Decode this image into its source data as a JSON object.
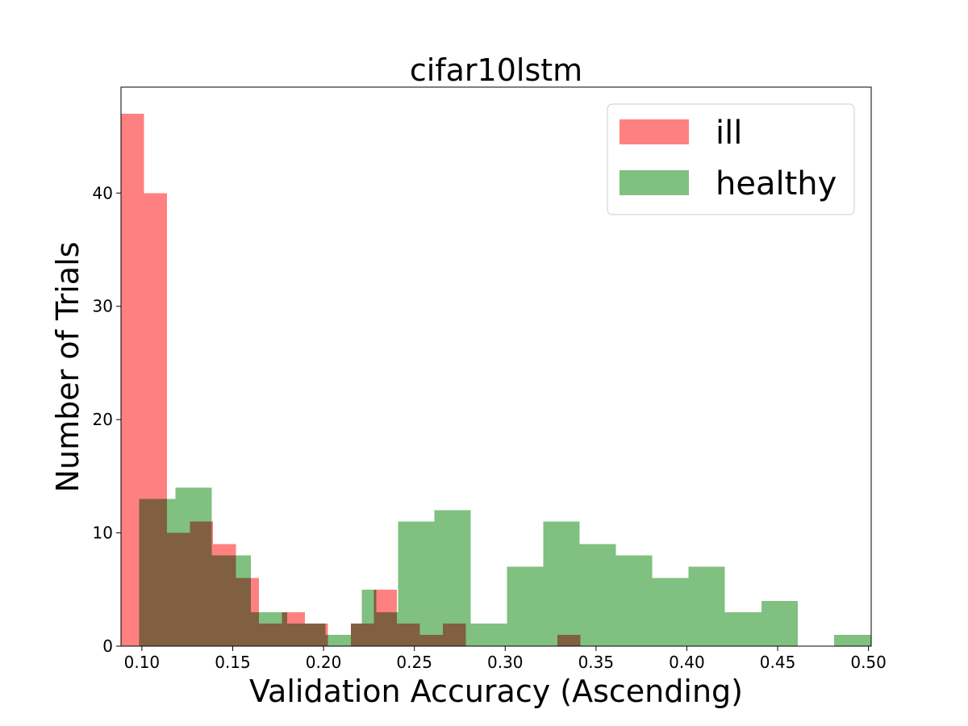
{
  "chart_data": {
    "type": "bar",
    "title": "cifar10lstm",
    "xlabel": "Validation Accuracy (Ascending)",
    "ylabel": "Number of Trials",
    "xlim": [
      0.0885,
      0.5015
    ],
    "ylim": [
      0,
      49.35
    ],
    "xticks": [
      0.1,
      0.15,
      0.2,
      0.25,
      0.3,
      0.35,
      0.4,
      0.45,
      0.5
    ],
    "xtick_labels": [
      "0.10",
      "0.15",
      "0.20",
      "0.25",
      "0.30",
      "0.35",
      "0.40",
      "0.45",
      "0.50"
    ],
    "yticks": [
      0,
      10,
      20,
      30,
      40
    ],
    "ytick_labels": [
      "0",
      "10",
      "20",
      "30",
      "40"
    ],
    "grid": false,
    "legend_position": "top-right",
    "series": [
      {
        "name": "ill",
        "color": "#ff8080",
        "bins": [
          [
            0.0885,
            0.1012,
            47
          ],
          [
            0.1012,
            0.1138,
            40
          ],
          [
            0.1138,
            0.1265,
            10
          ],
          [
            0.1265,
            0.1391,
            11
          ],
          [
            0.1391,
            0.1518,
            9
          ],
          [
            0.1518,
            0.1644,
            6
          ],
          [
            0.1644,
            0.1771,
            2
          ],
          [
            0.1771,
            0.1897,
            3
          ],
          [
            0.1897,
            0.2024,
            2
          ],
          [
            0.2024,
            0.215,
            0
          ],
          [
            0.215,
            0.2277,
            2
          ],
          [
            0.2277,
            0.2403,
            5
          ],
          [
            0.2403,
            0.253,
            2
          ],
          [
            0.253,
            0.2656,
            1
          ],
          [
            0.2656,
            0.2783,
            2
          ],
          [
            0.3288,
            0.3415,
            1
          ]
        ]
      },
      {
        "name": "healthy",
        "color": "#80c080",
        "bins": [
          [
            0.0985,
            0.1085,
            13
          ],
          [
            0.1085,
            0.1185,
            13
          ],
          [
            0.1185,
            0.1385,
            14
          ],
          [
            0.1385,
            0.154,
            8
          ],
          [
            0.154,
            0.16,
            8
          ],
          [
            0.16,
            0.1635,
            3
          ],
          [
            0.1635,
            0.169,
            3
          ],
          [
            0.169,
            0.18,
            3
          ],
          [
            0.18,
            0.201,
            2
          ],
          [
            0.201,
            0.215,
            1
          ],
          [
            0.215,
            0.221,
            2
          ],
          [
            0.221,
            0.229,
            5
          ],
          [
            0.229,
            0.241,
            3
          ],
          [
            0.241,
            0.261,
            11
          ],
          [
            0.261,
            0.281,
            12
          ],
          [
            0.281,
            0.301,
            2
          ],
          [
            0.301,
            0.321,
            7
          ],
          [
            0.321,
            0.341,
            11
          ],
          [
            0.341,
            0.361,
            9
          ],
          [
            0.361,
            0.381,
            8
          ],
          [
            0.381,
            0.401,
            6
          ],
          [
            0.401,
            0.421,
            7
          ],
          [
            0.421,
            0.441,
            3
          ],
          [
            0.441,
            0.461,
            4
          ],
          [
            0.461,
            0.481,
            0
          ],
          [
            0.481,
            0.5015,
            1
          ]
        ]
      }
    ]
  }
}
